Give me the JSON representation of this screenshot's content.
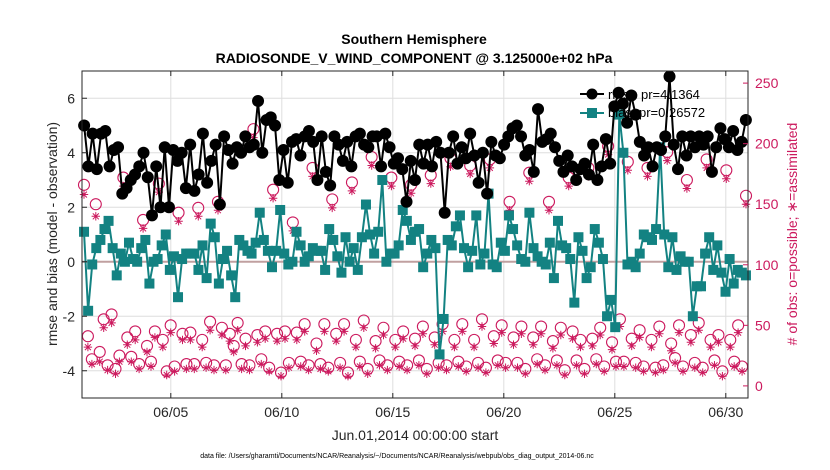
{
  "chart_data": {
    "type": "line",
    "title": "Southern Hemisphere",
    "subtitle": "RADIOSONDE_V_WIND_COMPONENT @ 3.125000e+02 hPa",
    "xlabel": "Jun.01,2014 00:00:00 start",
    "ylabel_left": "rmse and bias (model - observation)",
    "ylabel_right": "# of obs: o=possible; ∗=assimilated",
    "footer": "data file: /Users/gharamti/Documents/NCAR/Reanalysis/~/Documents/NCAR/Reanalysis/webpub/obs_diag_output_2014-06.nc",
    "xlim": [
      1,
      31
    ],
    "ylim_left": [
      -5,
      7
    ],
    "ylim_right": [
      -10,
      260
    ],
    "x_ticks": [
      5,
      10,
      15,
      20,
      25,
      30
    ],
    "x_tick_labels": [
      "06/05",
      "06/10",
      "06/15",
      "06/20",
      "06/25",
      "06/30"
    ],
    "y_left_ticks": [
      -4,
      -2,
      0,
      2,
      4,
      6
    ],
    "y_left_tick_labels": [
      "-4",
      "-2",
      "0",
      "2",
      "4",
      "6"
    ],
    "y_right_ticks": [
      0,
      50,
      100,
      150,
      200,
      250
    ],
    "y_right_tick_labels": [
      "0",
      "50",
      "100",
      "150",
      "200",
      "250"
    ],
    "zero_line": 0,
    "grid": true,
    "legend_position": "top-right",
    "colors": {
      "rmse": "#000000",
      "bias": "#138282",
      "obs": "#cc1a5e",
      "zero": "#c0a0a0"
    },
    "series": [
      {
        "name": "rmse",
        "legend_label": "rmse",
        "legend_value": "pr=4.1364",
        "axis": "left",
        "marker": "circle",
        "values": [
          5.0,
          3.5,
          4.7,
          3.4,
          4.7,
          4.8,
          3.5,
          4.1,
          4.2,
          2.5,
          2.7,
          3.0,
          3.2,
          3.5,
          4.0,
          3.1,
          1.7,
          3.5,
          2.0,
          4.2,
          2.0,
          4.1,
          3.7,
          4.0,
          2.7,
          4.3,
          2.6,
          3.2,
          4.7,
          2.9,
          3.7,
          4.3,
          2.1,
          4.6,
          4.1,
          3.6,
          4.2,
          4.0,
          4.6,
          4.2,
          4.3,
          5.9,
          4.0,
          5.2,
          5.3,
          5.0,
          3.0,
          4.1,
          2.9,
          4.4,
          4.5,
          3.9,
          4.6,
          4.8,
          4.4,
          3.0,
          4.6,
          3.3,
          2.8,
          4.6,
          4.3,
          3.7,
          4.4,
          3.5,
          4.6,
          4.7,
          4.3,
          4.2,
          4.6,
          4.6,
          3.5,
          4.7,
          4.2,
          3.6,
          3.8,
          3.4,
          2.2,
          3.7,
          3.0,
          4.3,
          3.6,
          4.3,
          3.5,
          4.4,
          4.0,
          1.8,
          4.0,
          4.6,
          3.6,
          4.2,
          3.8,
          4.7,
          3.9,
          2.9,
          4.0,
          2.5,
          4.4,
          3.9,
          3.8,
          4.3,
          4.6,
          4.9,
          5.0,
          4.6,
          3.9,
          4.1,
          3.3,
          5.6,
          4.4,
          4.5,
          4.7,
          4.2,
          3.7,
          3.3,
          3.9,
          3.5,
          3.0,
          3.4,
          3.6,
          3.2,
          4.3,
          3.0,
          3.5,
          4.5,
          3.6,
          5.7,
          6.2,
          5.8,
          5.1,
          6.1,
          5.4,
          4.4,
          3.9,
          4.2,
          3.5,
          4.2,
          4.1,
          4.6,
          6.8,
          4.3,
          3.4,
          4.6,
          3.9,
          4.6,
          4.2,
          4.6,
          4.3,
          4.6,
          3.3,
          4.2,
          4.9,
          4.5,
          4.2,
          4.8,
          4.1,
          4.4,
          5.2
        ]
      },
      {
        "name": "bias",
        "legend_label": "bias",
        "legend_value": "pr=0.26572",
        "axis": "left",
        "marker": "square",
        "values": [
          1.1,
          -1.8,
          -0.1,
          0.5,
          0.8,
          1.2,
          1.5,
          0.5,
          -0.5,
          0.3,
          0.0,
          0.7,
          0.1,
          0.0,
          0.5,
          0.8,
          -0.8,
          0.0,
          0.1,
          0.6,
          1.0,
          -0.3,
          0.2,
          -1.3,
          0.1,
          0.3,
          0.3,
          0.3,
          -0.3,
          0.6,
          -0.6,
          1.4,
          0.9,
          -0.8,
          0.1,
          0.4,
          -0.5,
          -1.3,
          0.8,
          0.6,
          0.4,
          0.3,
          0.7,
          1.8,
          0.8,
          0.4,
          -0.2,
          0.4,
          1.9,
          0.3,
          -0.1,
          0.0,
          1.1,
          0.6,
          0.0,
          0.2,
          0.5,
          0.4,
          0.4,
          -0.3,
          1.2,
          0.8,
          0.2,
          -0.4,
          0.9,
          0.0,
          0.5,
          -0.3,
          0.9,
          2.1,
          1.0,
          0.3,
          1.1,
          3.0,
          0.0,
          0.3,
          0.3,
          0.6,
          1.9,
          1.5,
          0.8,
          1.1,
          1.2,
          -0.2,
          0.3,
          0.8,
          0.5,
          -3.4,
          -2.1,
          0.8,
          0.6,
          1.3,
          1.7,
          0.5,
          -0.2,
          0.4,
          1.7,
          -0.1,
          0.3,
          2.5,
          -0.1,
          -0.2,
          0.7,
          0.4,
          1.7,
          1.2,
          0.6,
          0.1,
          0.0,
          1.8,
          0.5,
          0.2,
          0.0,
          -0.1,
          0.7,
          -0.6,
          1.5,
          0.6,
          0.5,
          0.1,
          -1.5,
          0.9,
          0.4,
          -0.6,
          -0.2,
          1.2,
          0.7,
          0.1,
          -2.0,
          -1.4,
          -2.4,
          5.4,
          4.0,
          -0.1,
          0.0,
          -0.2,
          0.3,
          1.0,
          0.9,
          0.8,
          1.2,
          4.2,
          1.0,
          -0.2,
          0.9,
          -0.3,
          0.2,
          0.0,
          0.0,
          -2.0,
          -0.9,
          -0.9,
          0.3,
          0.9,
          -0.3,
          0.6,
          -0.4,
          -1.1,
          0.1,
          -0.8,
          -0.3,
          -0.4,
          -0.5
        ]
      },
      {
        "name": "possible",
        "axis": "right",
        "marker": "open-circle",
        "values": [
          166,
          41,
          22,
          150,
          28,
          55,
          17,
          59,
          14,
          25,
          172,
          40,
          24,
          45,
          18,
          137,
          33,
          20,
          45,
          167,
          38,
          12,
          50,
          16,
          143,
          43,
          18,
          44,
          18,
          147,
          38,
          19,
          53,
          17,
          152,
          48,
          17,
          43,
          33,
          52,
          18,
          39,
          17,
          212,
          42,
          22,
          45,
          15,
          162,
          43,
          11,
          45,
          19,
          135,
          44,
          20,
          51,
          17,
          180,
          35,
          18,
          51,
          15,
          154,
          43,
          19,
          51,
          11,
          168,
          38,
          20,
          54,
          14,
          189,
          37,
          21,
          48,
          17,
          172,
          38,
          20,
          45,
          17,
          166,
          39,
          21,
          49,
          14,
          174,
          40,
          19,
          51,
          17,
          188,
          38,
          20,
          51,
          16,
          182,
          38,
          19,
          55,
          15,
          187,
          41,
          21,
          50,
          19,
          152,
          40,
          19,
          49,
          14,
          176,
          40,
          22,
          49,
          17,
          152,
          37,
          21,
          48,
          13,
          172,
          45,
          21,
          38,
          14,
          180,
          39,
          22,
          48,
          16,
          198,
          36,
          20,
          55,
          20,
          185,
          39,
          19,
          46,
          16,
          180,
          38,
          15,
          49,
          17,
          193,
          35,
          23,
          50,
          16,
          170,
          42,
          19,
          52,
          15,
          187,
          38,
          21,
          42,
          12,
          178,
          38,
          20,
          50,
          16,
          157
        ]
      },
      {
        "name": "assimilated",
        "axis": "right",
        "marker": "star",
        "values": [
          158,
          32,
          18,
          140,
          20,
          48,
          13,
          52,
          10,
          20,
          165,
          34,
          20,
          38,
          14,
          130,
          28,
          16,
          40,
          160,
          32,
          9,
          44,
          12,
          136,
          38,
          14,
          38,
          14,
          140,
          32,
          15,
          46,
          13,
          145,
          42,
          13,
          37,
          28,
          46,
          14,
          33,
          13,
          205,
          36,
          18,
          39,
          12,
          155,
          37,
          8,
          39,
          15,
          128,
          38,
          16,
          45,
          13,
          173,
          29,
          14,
          45,
          12,
          147,
          37,
          15,
          45,
          8,
          161,
          32,
          16,
          48,
          10,
          182,
          31,
          17,
          42,
          13,
          165,
          32,
          16,
          39,
          13,
          159,
          33,
          17,
          43,
          10,
          167,
          34,
          15,
          45,
          13,
          181,
          32,
          16,
          45,
          12,
          175,
          32,
          15,
          49,
          11,
          180,
          35,
          17,
          44,
          15,
          145,
          34,
          15,
          43,
          10,
          169,
          34,
          18,
          43,
          13,
          145,
          31,
          17,
          42,
          9,
          165,
          39,
          17,
          32,
          10,
          173,
          33,
          18,
          42,
          12,
          191,
          30,
          16,
          49,
          16,
          178,
          33,
          15,
          40,
          12,
          173,
          32,
          11,
          43,
          13,
          186,
          29,
          19,
          44,
          12,
          163,
          36,
          15,
          46,
          11,
          180,
          32,
          17,
          36,
          8,
          171,
          32,
          16,
          44,
          12,
          150
        ]
      }
    ]
  }
}
